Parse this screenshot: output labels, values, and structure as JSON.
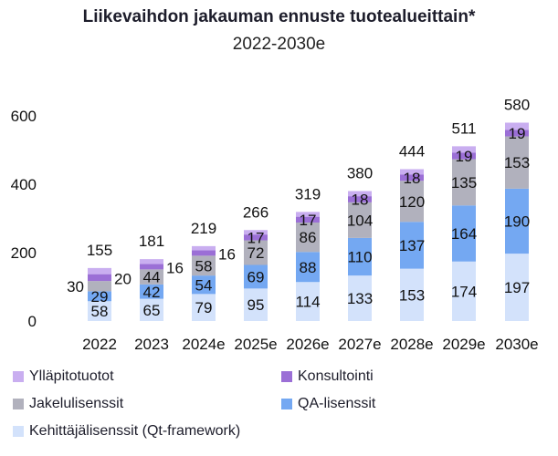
{
  "chart_data": {
    "type": "bar",
    "stacked": true,
    "title": "Liikevaihdon jakauman ennuste tuotealueittain*",
    "subtitle": "2022-2030e",
    "categories": [
      "2022",
      "2023",
      "2024e",
      "2025e",
      "2026e",
      "2027e",
      "2028e",
      "2029e",
      "2030e"
    ],
    "totals": [
      155,
      181,
      219,
      266,
      319,
      380,
      444,
      511,
      580
    ],
    "ylim": [
      0,
      600
    ],
    "yticks": [
      0,
      200,
      400,
      600
    ],
    "grid": false,
    "legend_position": "bottom",
    "series": [
      {
        "name": "Kehittäjälisenssit (Qt-framework)",
        "color": "#d3e2fb",
        "values": [
          58,
          65,
          79,
          95,
          114,
          133,
          153,
          174,
          197
        ]
      },
      {
        "name": "QA-lisenssit",
        "color": "#74a8f2",
        "values": [
          29,
          42,
          54,
          69,
          88,
          110,
          137,
          164,
          190
        ]
      },
      {
        "name": "Jakelulisenssit",
        "color": "#b1b1bd",
        "values": [
          30,
          44,
          58,
          72,
          86,
          104,
          120,
          135,
          153
        ]
      },
      {
        "name": "Konsultointi",
        "color": "#9b6fd6",
        "values": [
          20,
          16,
          16,
          17,
          17,
          18,
          18,
          19,
          19
        ]
      },
      {
        "name": "Ylläpitotuotot",
        "color": "#c9aef0",
        "values": [
          18,
          14,
          12,
          13,
          14,
          15,
          16,
          19,
          21
        ]
      }
    ],
    "labels": {
      "Kehittäjälisenssit (Qt-framework)": [
        "58",
        "65",
        "79",
        "95",
        "114",
        "133",
        "153",
        "174",
        "197"
      ],
      "QA-lisenssit": [
        "29",
        "42",
        "54",
        "69",
        "88",
        "110",
        "137",
        "164",
        "190"
      ],
      "Jakelulisenssit": [
        "30",
        "44",
        "58",
        "72",
        "86",
        "104",
        "120",
        "135",
        "153"
      ],
      "Konsultointi": [
        "20",
        "16",
        "16",
        "17",
        "17",
        "18",
        "18",
        "19",
        "19"
      ]
    }
  },
  "legend": [
    {
      "label": "Ylläpitotuotot",
      "color": "#c9aef0",
      "icon": "square-swatch"
    },
    {
      "label": "Konsultointi",
      "color": "#9b6fd6",
      "icon": "square-swatch"
    },
    {
      "label": "Jakelulisenssit",
      "color": "#b1b1bd",
      "icon": "square-swatch"
    },
    {
      "label": "QA-lisenssit",
      "color": "#74a8f2",
      "icon": "square-swatch"
    },
    {
      "label": "Kehittäjälisenssit (Qt-framework)",
      "color": "#d3e2fb",
      "icon": "square-swatch"
    }
  ]
}
